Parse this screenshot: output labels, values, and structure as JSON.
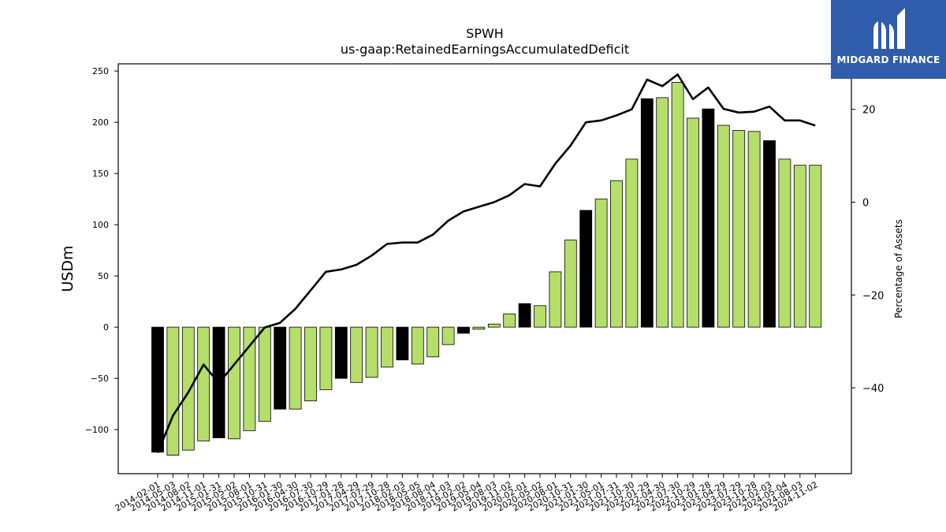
{
  "logo": {
    "text": "MIDGARD FINANCE",
    "background": "#2f5cab"
  },
  "chart_data": {
    "type": "bar",
    "title": "SPWH",
    "subtitle": "us-gaap:RetainedEarningsAccumulatedDeficit",
    "ylabel": "USDm",
    "ylabel_right": "Percentage of Assets",
    "ylim": [
      -143,
      257
    ],
    "ylim_right": [
      -58.5,
      29.8
    ],
    "yticks": [
      -100,
      -50,
      0,
      50,
      100,
      150,
      200,
      250
    ],
    "yticks_right": [
      -40,
      -20,
      0,
      20
    ],
    "colors": {
      "bar_light": "#b5de6b",
      "bar_dark": "#000000",
      "line": "#000000"
    },
    "categories": [
      "2014-02-01",
      "2014-05-03",
      "2014-08-02",
      "2014-11-01",
      "2015-01-31",
      "2015-05-02",
      "2015-08-01",
      "2015-10-31",
      "2016-01-30",
      "2016-04-30",
      "2016-07-30",
      "2016-10-29",
      "2017-01-28",
      "2017-04-29",
      "2017-07-29",
      "2017-10-28",
      "2018-02-03",
      "2018-05-05",
      "2018-08-04",
      "2018-11-03",
      "2019-02-02",
      "2019-05-04",
      "2019-08-03",
      "2019-11-02",
      "2020-02-01",
      "2020-05-02",
      "2020-08-01",
      "2020-10-31",
      "2021-01-30",
      "2021-05-01",
      "2021-07-31",
      "2021-10-30",
      "2022-01-29",
      "2022-04-30",
      "2022-07-30",
      "2022-10-29",
      "2023-01-28",
      "2023-04-29",
      "2023-07-29",
      "2023-10-28",
      "2024-02-03",
      "2024-05-04",
      "2024-08-03",
      "2024-11-02"
    ],
    "series": [
      {
        "kind": "bar",
        "values": [
          -122,
          -125,
          -120,
          -111,
          -108,
          -109,
          -101,
          -92,
          -80,
          -80,
          -72,
          -61,
          -50,
          -54,
          -49,
          -39,
          -32,
          -36,
          -29,
          -17,
          -6,
          -2,
          3,
          13,
          23,
          21,
          54,
          85,
          114,
          125,
          143,
          164,
          223,
          224,
          239,
          204,
          213,
          197,
          192,
          191,
          182,
          164,
          158,
          158
        ],
        "dark": [
          true,
          false,
          false,
          false,
          true,
          false,
          false,
          false,
          true,
          false,
          false,
          false,
          true,
          false,
          false,
          false,
          true,
          false,
          false,
          false,
          true,
          false,
          false,
          false,
          true,
          false,
          false,
          false,
          true,
          false,
          false,
          false,
          true,
          false,
          false,
          false,
          true,
          false,
          false,
          false,
          true,
          false,
          false,
          false
        ]
      },
      {
        "kind": "line",
        "axis": "right",
        "values": [
          -54,
          -46,
          -41,
          -35,
          -39,
          -35,
          -31,
          -27,
          -26,
          -23,
          -19,
          -15,
          -14.5,
          -13.5,
          -11.5,
          -9,
          -8.7,
          -8.7,
          -7,
          -4,
          -2,
          -1,
          0,
          1.5,
          3.9,
          3.4,
          8.3,
          12.2,
          17.2,
          17.6,
          18.7,
          20,
          26.4,
          25,
          27.5,
          22.2,
          24.7,
          20.1,
          19.3,
          19.5,
          20.6,
          17.6,
          17.6,
          16.5
        ]
      }
    ]
  }
}
